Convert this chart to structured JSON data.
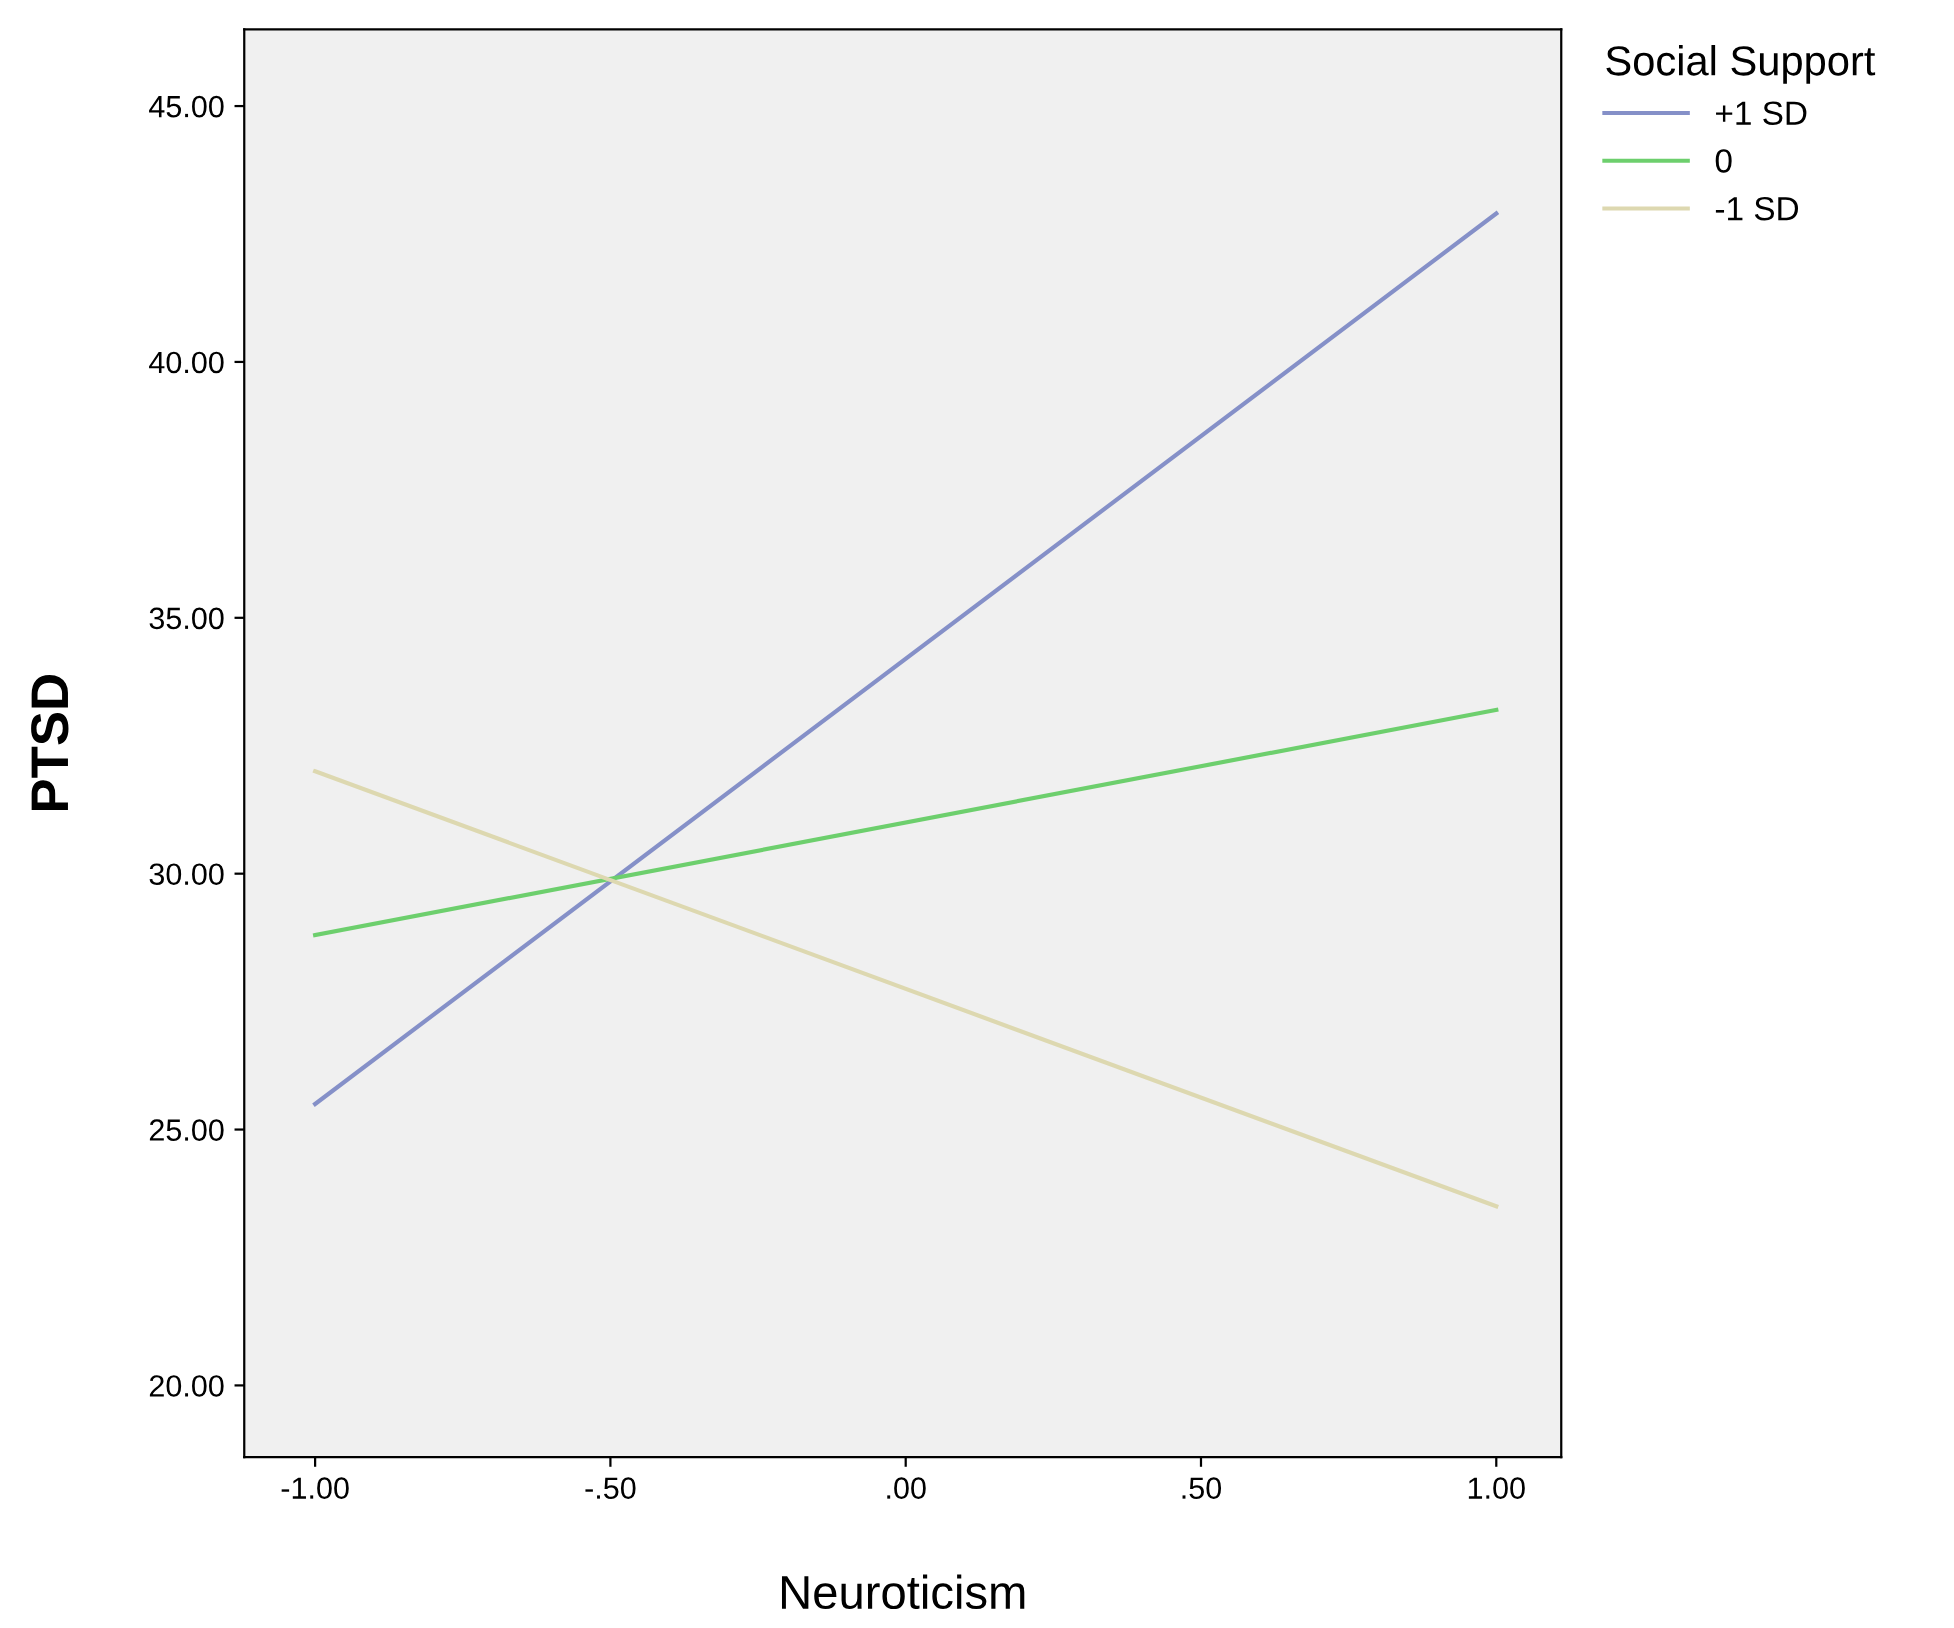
{
  "chart_data": {
    "type": "line",
    "xlabel": "Neuroticism",
    "ylabel": "PTSD",
    "legend_title": "Social Support",
    "x": [
      -1,
      1
    ],
    "series": [
      {
        "name": "+1 SD",
        "color": "#8590c8",
        "values": [
          25.5,
          42.9
        ]
      },
      {
        "name": "0",
        "color": "#6dcf6d",
        "values": [
          28.8,
          33.2
        ]
      },
      {
        "name": "-1 SD",
        "color": "#ddd8b0",
        "values": [
          32.0,
          23.5
        ]
      }
    ],
    "xlim": [
      -1.12,
      1.11
    ],
    "ylim": [
      18.6,
      46.5
    ],
    "xticks": [
      {
        "value": -1,
        "label": "-1.00"
      },
      {
        "value": -0.5,
        "label": "-.50"
      },
      {
        "value": 0,
        "label": ".00"
      },
      {
        "value": 0.5,
        "label": ".50"
      },
      {
        "value": 1,
        "label": "1.00"
      }
    ],
    "yticks": [
      {
        "value": 20,
        "label": "20.00"
      },
      {
        "value": 25,
        "label": "25.00"
      },
      {
        "value": 30,
        "label": "30.00"
      },
      {
        "value": 35,
        "label": "35.00"
      },
      {
        "value": 40,
        "label": "40.00"
      },
      {
        "value": 45,
        "label": "45.00"
      }
    ],
    "grid": false,
    "legend": "top right",
    "marker": "none",
    "line_style": "solid"
  }
}
